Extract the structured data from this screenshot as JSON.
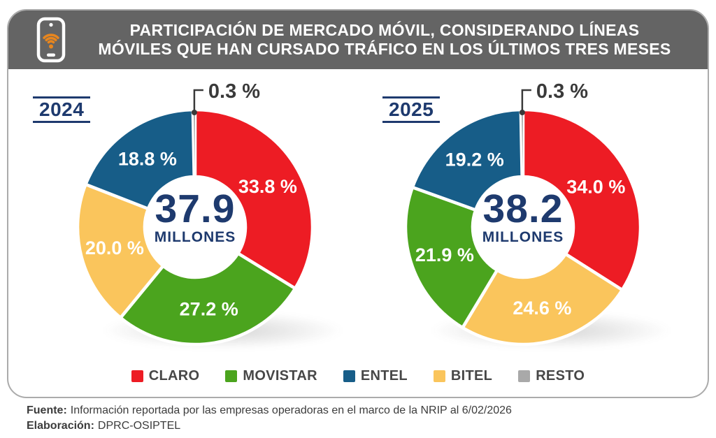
{
  "header": {
    "title_line1": "PARTICIPACIÓN DE MERCADO MÓVIL, CONSIDERANDO LÍNEAS",
    "title_line2": "MÓVILES QUE HAN CURSADO TRÁFICO EN LOS ÚLTIMOS TRES MESES",
    "icon": "phone-wifi-icon"
  },
  "colors": {
    "claro": "#ed1c24",
    "movistar": "#4ba41e",
    "entel": "#175d88",
    "bitel": "#fac55c",
    "resto": "#a9a9a9",
    "navy": "#1e3a6e",
    "header_bg": "#646464",
    "icon_orange": "#e8861e",
    "card_border": "#ababab",
    "text_dark": "#3c3c3c",
    "callout": "#3a3a3a"
  },
  "chart_data": [
    {
      "type": "pie",
      "year": "2024",
      "center_value": "37.9",
      "center_unit": "MILLONES",
      "slices": [
        {
          "label": "CLARO",
          "value": 33.8,
          "display": "33.8 %"
        },
        {
          "label": "MOVISTAR",
          "value": 27.2,
          "display": "27.2 %"
        },
        {
          "label": "BITEL",
          "value": 20.0,
          "display": "20.0 %"
        },
        {
          "label": "ENTEL",
          "value": 18.8,
          "display": "18.8 %"
        },
        {
          "label": "RESTO",
          "value": 0.3,
          "display": "0.3 %"
        }
      ]
    },
    {
      "type": "pie",
      "year": "2025",
      "center_value": "38.2",
      "center_unit": "MILLONES",
      "slices": [
        {
          "label": "CLARO",
          "value": 34.0,
          "display": "34.0 %"
        },
        {
          "label": "BITEL",
          "value": 24.6,
          "display": "24.6 %"
        },
        {
          "label": "MOVISTAR",
          "value": 21.9,
          "display": "21.9 %"
        },
        {
          "label": "ENTEL",
          "value": 19.2,
          "display": "19.2 %"
        },
        {
          "label": "RESTO",
          "value": 0.3,
          "display": "0.3 %"
        }
      ]
    }
  ],
  "legend": [
    {
      "label": "CLARO",
      "color_key": "claro"
    },
    {
      "label": "MOVISTAR",
      "color_key": "movistar"
    },
    {
      "label": "ENTEL",
      "color_key": "entel"
    },
    {
      "label": "BITEL",
      "color_key": "bitel"
    },
    {
      "label": "RESTO",
      "color_key": "resto"
    }
  ],
  "footer": {
    "fuente_label": "Fuente:",
    "fuente_text": "Información reportada por las empresas operadoras en el marco de la NRIP al 6/02/2026",
    "elaboracion_label": "Elaboración:",
    "elaboracion_text": "DPRC-OSIPTEL"
  }
}
